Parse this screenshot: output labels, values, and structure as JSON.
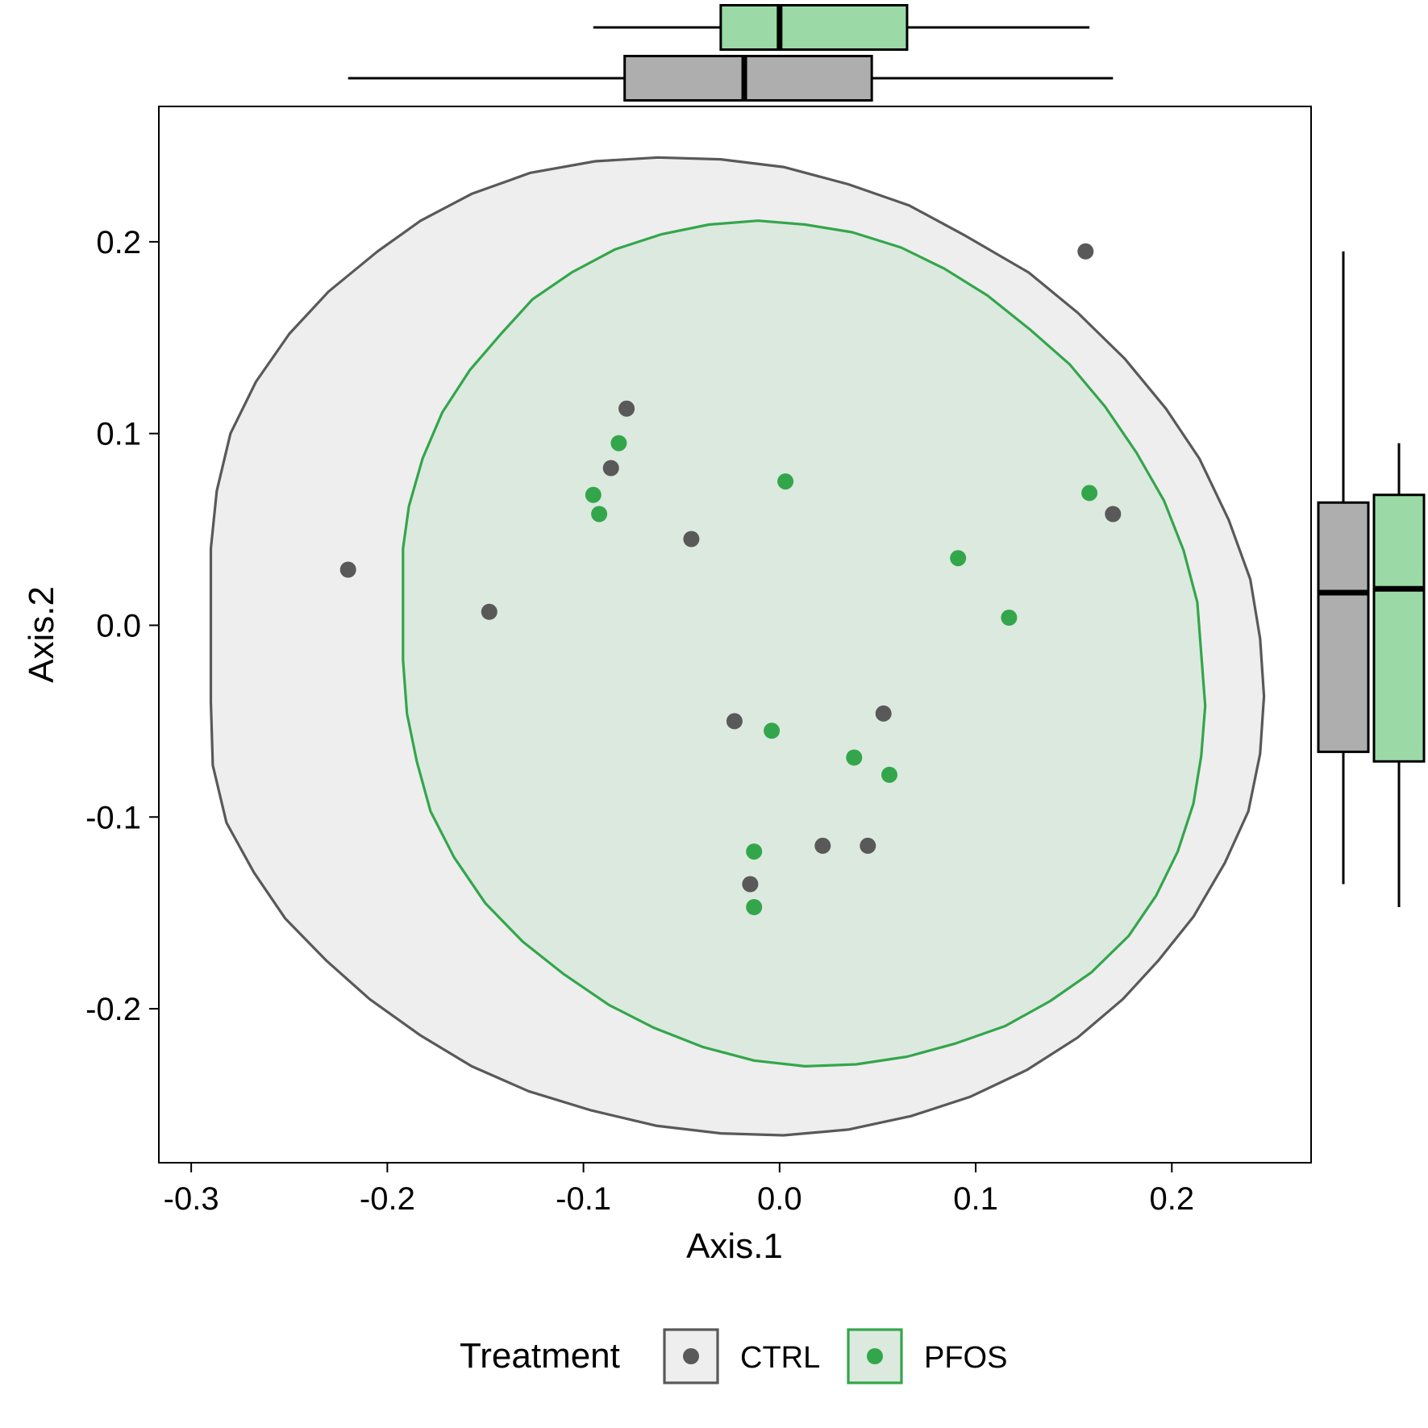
{
  "chart_data": {
    "type": "scatter",
    "xlabel": "Axis.1",
    "ylabel": "Axis.2",
    "xlim": [
      -0.3165,
      0.271
    ],
    "ylim": [
      -0.2803,
      0.2706
    ],
    "x_ticks": [
      -0.3,
      -0.2,
      -0.1,
      0.0,
      0.1,
      0.2
    ],
    "y_ticks": [
      -0.2,
      -0.1,
      0.0,
      0.1,
      0.2
    ],
    "x_tick_labels": [
      "-0.3",
      "-0.2",
      "-0.1",
      "0.0",
      "0.1",
      "0.2"
    ],
    "y_tick_labels": [
      "-0.2",
      "-0.1",
      "0.0",
      "0.1",
      "0.2"
    ],
    "grid": false,
    "legend": {
      "title": "Treatment",
      "position": "bottom"
    },
    "series": [
      {
        "name": "CTRL",
        "color": "#595959",
        "ellipse_fill": "#eeeeee",
        "points": [
          {
            "x": 0.156,
            "y": 0.195
          },
          {
            "x": -0.078,
            "y": 0.113
          },
          {
            "x": -0.086,
            "y": 0.082
          },
          {
            "x": -0.045,
            "y": 0.045
          },
          {
            "x": -0.22,
            "y": 0.029
          },
          {
            "x": -0.148,
            "y": 0.007
          },
          {
            "x": 0.17,
            "y": 0.058
          },
          {
            "x": -0.023,
            "y": -0.05
          },
          {
            "x": 0.053,
            "y": -0.046
          },
          {
            "x": 0.022,
            "y": -0.115
          },
          {
            "x": 0.045,
            "y": -0.115
          },
          {
            "x": -0.015,
            "y": -0.135
          }
        ],
        "ellipse": [
          [
            -0.29,
            0.04
          ],
          [
            -0.287,
            0.07
          ],
          [
            -0.28,
            0.1
          ],
          [
            -0.267,
            0.127
          ],
          [
            -0.25,
            0.152
          ],
          [
            -0.23,
            0.174
          ],
          [
            -0.205,
            0.195
          ],
          [
            -0.183,
            0.211
          ],
          [
            -0.157,
            0.225
          ],
          [
            -0.127,
            0.236
          ],
          [
            -0.094,
            0.242
          ],
          [
            -0.062,
            0.244
          ],
          [
            -0.03,
            0.243
          ],
          [
            0.002,
            0.239
          ],
          [
            0.035,
            0.23
          ],
          [
            0.066,
            0.219
          ],
          [
            0.095,
            0.203
          ],
          [
            0.127,
            0.184
          ],
          [
            0.152,
            0.163
          ],
          [
            0.176,
            0.139
          ],
          [
            0.197,
            0.113
          ],
          [
            0.214,
            0.087
          ],
          [
            0.229,
            0.055
          ],
          [
            0.24,
            0.024
          ],
          [
            0.245,
            -0.007
          ],
          [
            0.247,
            -0.037
          ],
          [
            0.245,
            -0.067
          ],
          [
            0.239,
            -0.097
          ],
          [
            0.227,
            -0.124
          ],
          [
            0.211,
            -0.152
          ],
          [
            0.193,
            -0.175
          ],
          [
            0.175,
            -0.195
          ],
          [
            0.152,
            -0.215
          ],
          [
            0.126,
            -0.232
          ],
          [
            0.097,
            -0.246
          ],
          [
            0.067,
            -0.256
          ],
          [
            0.035,
            -0.263
          ],
          [
            0.002,
            -0.266
          ],
          [
            -0.03,
            -0.265
          ],
          [
            -0.063,
            -0.261
          ],
          [
            -0.096,
            -0.253
          ],
          [
            -0.128,
            -0.243
          ],
          [
            -0.157,
            -0.23
          ],
          [
            -0.183,
            -0.214
          ],
          [
            -0.209,
            -0.195
          ],
          [
            -0.231,
            -0.175
          ],
          [
            -0.252,
            -0.153
          ],
          [
            -0.268,
            -0.129
          ],
          [
            -0.282,
            -0.103
          ],
          [
            -0.289,
            -0.073
          ],
          [
            -0.29,
            -0.04
          ],
          [
            -0.29,
            0.04
          ]
        ],
        "box_x": {
          "min": -0.22,
          "q1": -0.079,
          "median": -0.018,
          "q3": 0.047,
          "max": 0.17
        },
        "box_y": {
          "min": -0.135,
          "q1": -0.066,
          "median": 0.017,
          "q3": 0.064,
          "max": 0.195
        }
      },
      {
        "name": "PFOS",
        "color": "#33a64b",
        "ellipse_fill": "#dce9df",
        "points": [
          {
            "x": -0.082,
            "y": 0.095
          },
          {
            "x": -0.095,
            "y": 0.068
          },
          {
            "x": -0.092,
            "y": 0.058
          },
          {
            "x": 0.003,
            "y": 0.075
          },
          {
            "x": 0.158,
            "y": 0.069
          },
          {
            "x": 0.091,
            "y": 0.035
          },
          {
            "x": 0.117,
            "y": 0.004
          },
          {
            "x": -0.004,
            "y": -0.055
          },
          {
            "x": 0.038,
            "y": -0.069
          },
          {
            "x": 0.056,
            "y": -0.078
          },
          {
            "x": -0.013,
            "y": -0.118
          },
          {
            "x": -0.013,
            "y": -0.147
          }
        ],
        "ellipse": [
          [
            -0.192,
            0.04
          ],
          [
            -0.189,
            0.062
          ],
          [
            -0.182,
            0.087
          ],
          [
            -0.172,
            0.111
          ],
          [
            -0.158,
            0.133
          ],
          [
            -0.142,
            0.152
          ],
          [
            -0.126,
            0.17
          ],
          [
            -0.106,
            0.184
          ],
          [
            -0.084,
            0.196
          ],
          [
            -0.06,
            0.204
          ],
          [
            -0.036,
            0.209
          ],
          [
            -0.011,
            0.211
          ],
          [
            0.013,
            0.209
          ],
          [
            0.037,
            0.205
          ],
          [
            0.062,
            0.197
          ],
          [
            0.084,
            0.186
          ],
          [
            0.106,
            0.172
          ],
          [
            0.128,
            0.154
          ],
          [
            0.148,
            0.136
          ],
          [
            0.166,
            0.114
          ],
          [
            0.182,
            0.09
          ],
          [
            0.196,
            0.065
          ],
          [
            0.206,
            0.039
          ],
          [
            0.213,
            0.012
          ],
          [
            0.215,
            -0.015
          ],
          [
            0.217,
            -0.042
          ],
          [
            0.215,
            -0.068
          ],
          [
            0.211,
            -0.093
          ],
          [
            0.203,
            -0.118
          ],
          [
            0.192,
            -0.141
          ],
          [
            0.178,
            -0.162
          ],
          [
            0.159,
            -0.181
          ],
          [
            0.138,
            -0.196
          ],
          [
            0.115,
            -0.209
          ],
          [
            0.09,
            -0.218
          ],
          [
            0.065,
            -0.225
          ],
          [
            0.039,
            -0.229
          ],
          [
            0.013,
            -0.23
          ],
          [
            -0.013,
            -0.227
          ],
          [
            -0.039,
            -0.22
          ],
          [
            -0.064,
            -0.21
          ],
          [
            -0.087,
            -0.198
          ],
          [
            -0.11,
            -0.182
          ],
          [
            -0.131,
            -0.165
          ],
          [
            -0.15,
            -0.145
          ],
          [
            -0.166,
            -0.121
          ],
          [
            -0.178,
            -0.097
          ],
          [
            -0.185,
            -0.071
          ],
          [
            -0.19,
            -0.046
          ],
          [
            -0.192,
            -0.018
          ],
          [
            -0.192,
            0.01
          ],
          [
            -0.192,
            0.04
          ]
        ],
        "box_x": {
          "min": -0.095,
          "q1": -0.03,
          "median": 0.0,
          "q3": 0.065,
          "max": 0.158
        },
        "box_y": {
          "min": -0.147,
          "q1": -0.071,
          "median": 0.019,
          "q3": 0.068,
          "max": 0.095
        }
      }
    ]
  },
  "marginal_box_fills": {
    "CTRL": "#aeaeae",
    "PFOS": "#9bdaa6"
  }
}
